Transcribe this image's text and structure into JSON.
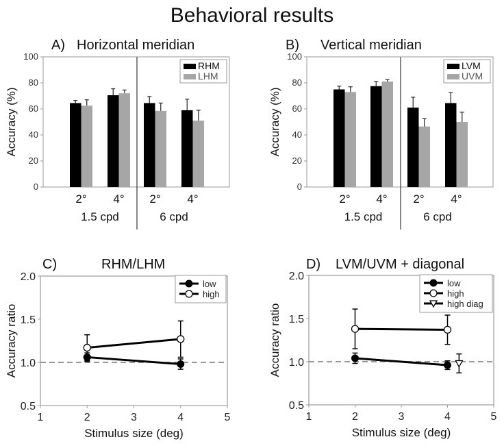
{
  "title": "Behavioral results",
  "chart_data": [
    {
      "type": "bar",
      "panel": "A)",
      "title": "Horizontal meridian",
      "ylabel": "Accuracy (%)",
      "ylim": [
        0,
        100
      ],
      "yticks": [
        "0",
        "20",
        "40",
        "60",
        "80",
        "100"
      ],
      "groups": [
        "1.5 cpd",
        "6 cpd"
      ],
      "categories": [
        "2°",
        "4°",
        "2°",
        "4°"
      ],
      "legend_position": "top-right",
      "series": [
        {
          "name": "RHM",
          "color": "#000000",
          "values": [
            64.5,
            70.5,
            64.5,
            59
          ],
          "errors": [
            2,
            5,
            5,
            8.5
          ]
        },
        {
          "name": "LHM",
          "color": "#a6a6a6",
          "values": [
            62.5,
            72,
            58.5,
            51
          ],
          "errors": [
            4.5,
            2.5,
            6,
            8
          ]
        }
      ]
    },
    {
      "type": "bar",
      "panel": "B)",
      "title": "Vertical meridian",
      "ylabel": "Accuracy (%)",
      "ylim": [
        0,
        100
      ],
      "yticks": [
        "0",
        "20",
        "40",
        "60",
        "80",
        "100"
      ],
      "groups": [
        "1.5 cpd",
        "6 cpd"
      ],
      "categories": [
        "2°",
        "4°",
        "2°",
        "4°"
      ],
      "legend_position": "top-right",
      "series": [
        {
          "name": "LVM",
          "color": "#000000",
          "values": [
            75,
            77.5,
            61,
            64.5
          ],
          "errors": [
            2.5,
            3.5,
            8,
            8
          ]
        },
        {
          "name": "UVM",
          "color": "#a6a6a6",
          "values": [
            73,
            81,
            46.5,
            50
          ],
          "errors": [
            4,
            1.5,
            6,
            7.5
          ]
        }
      ]
    },
    {
      "type": "line",
      "panel": "C)",
      "title": "RHM/LHM",
      "xlabel": "Stimulus size (deg)",
      "ylabel": "Accuracy ratio",
      "xlim": [
        1,
        5
      ],
      "ylim": [
        0.5,
        2.0
      ],
      "xticks": [
        "1",
        "2",
        "3",
        "4",
        "5"
      ],
      "yticks": [
        "0.5",
        "1.0",
        "1.5",
        "2.0"
      ],
      "reference_line": 1.0,
      "legend_position": "top-right",
      "series": [
        {
          "name": "low",
          "marker": "filled-circle",
          "x": [
            2,
            4
          ],
          "y": [
            1.06,
            0.98
          ],
          "errors": [
            0.05,
            0.06
          ]
        },
        {
          "name": "high",
          "marker": "open-circle",
          "x": [
            2,
            4
          ],
          "y": [
            1.17,
            1.27
          ],
          "errors": [
            0.15,
            0.21
          ]
        }
      ]
    },
    {
      "type": "line",
      "panel": "D)",
      "title": "LVM/UVM + diagonal",
      "xlabel": "Stimulus size (deg)",
      "ylabel": "Accuracy ratio",
      "xlim": [
        1,
        5
      ],
      "ylim": [
        0.5,
        2.0
      ],
      "xticks": [
        "1",
        "2",
        "3",
        "4",
        "5"
      ],
      "yticks": [
        "0.5",
        "1.0",
        "1.5",
        "2.0"
      ],
      "reference_line": 1.0,
      "legend_position": "top-right",
      "series": [
        {
          "name": "low",
          "marker": "filled-circle",
          "x": [
            2,
            4
          ],
          "y": [
            1.04,
            0.96
          ],
          "errors": [
            0.06,
            0.05
          ]
        },
        {
          "name": "high",
          "marker": "open-circle",
          "x": [
            2,
            4
          ],
          "y": [
            1.38,
            1.37
          ],
          "errors": [
            0.23,
            0.17
          ]
        },
        {
          "name": "high diag",
          "marker": "open-triangle-down",
          "x": [
            4.25
          ],
          "y": [
            0.98
          ],
          "errors": [
            0.11
          ]
        }
      ]
    }
  ]
}
